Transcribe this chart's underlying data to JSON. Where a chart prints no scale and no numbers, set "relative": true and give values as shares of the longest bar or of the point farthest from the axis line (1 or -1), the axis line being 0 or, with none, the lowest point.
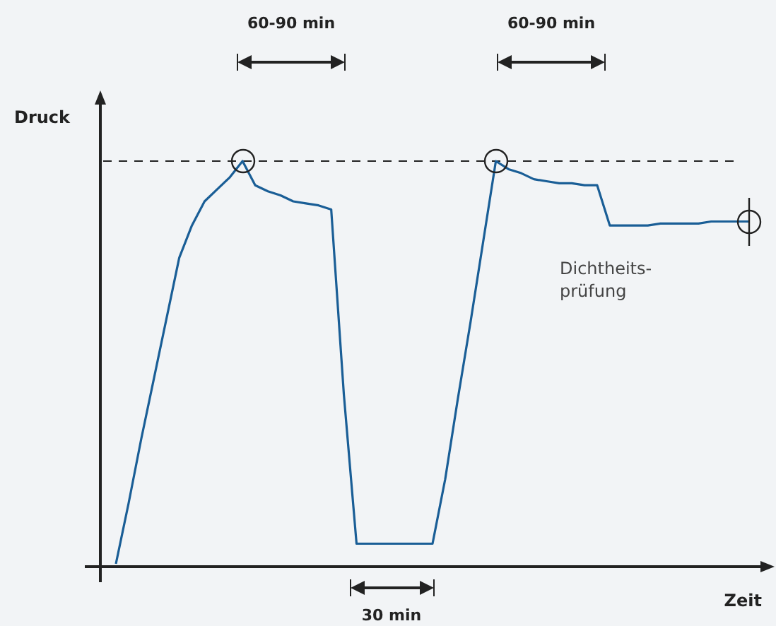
{
  "chart_data": {
    "type": "line",
    "relative": true,
    "xlabel": "Zeit",
    "ylabel": "Druck",
    "categories": [
      null,
      null,
      null,
      null,
      null,
      null,
      null,
      null,
      null,
      null,
      null,
      null,
      null,
      null,
      null,
      null,
      null,
      null,
      null,
      null,
      null,
      null,
      null,
      null,
      null,
      null,
      null,
      null,
      null,
      null,
      null,
      null,
      null,
      null,
      null,
      null,
      null,
      null,
      null,
      null,
      null,
      null,
      null,
      null,
      null,
      null,
      null,
      null,
      null,
      null,
      null
    ],
    "series": [
      {
        "color": "#1a5e96",
        "values": [
          0,
          0.15,
          0.31,
          0.46,
          0.61,
          0.76,
          0.84,
          0.9,
          0.93,
          0.96,
          1,
          0.94,
          0.925,
          0.915,
          0.9,
          0.895,
          0.89,
          0.88,
          0.42,
          0.05,
          0.05,
          0.05,
          0.05,
          0.05,
          0.05,
          0.05,
          0.21,
          0.41,
          0.6,
          0.8,
          1,
          0.98,
          0.97,
          0.955,
          0.95,
          0.945,
          0.945,
          0.94,
          0.94,
          0.84,
          0.84,
          0.84,
          0.84,
          0.845,
          0.845,
          0.845,
          0.845,
          0.85,
          0.85,
          0.85,
          0.85
        ]
      }
    ],
    "marker": "none",
    "line_style": "solid",
    "ref_lines": [
      {
        "axis": "y",
        "value": 1,
        "color": "#222222",
        "line_style": "dashed"
      }
    ],
    "annotations": [
      "60-90 min",
      "60-90 min",
      "30 min",
      "Dichtheits-\nprüfung"
    ]
  }
}
